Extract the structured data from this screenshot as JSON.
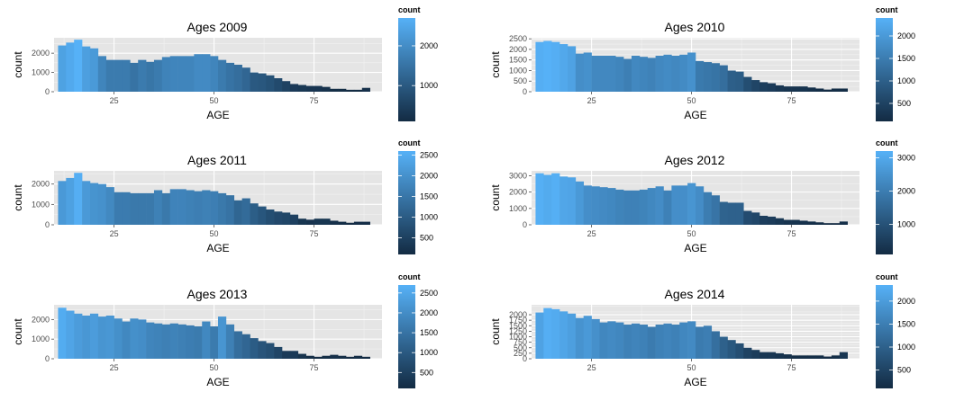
{
  "chart_data": [
    {
      "type": "bar",
      "title": "Ages 2009",
      "xlabel": "AGE",
      "ylabel": "count",
      "legend_title": "count",
      "x": [
        12,
        14,
        16,
        18,
        20,
        22,
        24,
        26,
        28,
        30,
        32,
        34,
        36,
        38,
        40,
        42,
        44,
        46,
        48,
        50,
        52,
        54,
        56,
        58,
        60,
        62,
        64,
        66,
        68,
        70,
        72,
        74,
        76,
        78,
        80,
        82,
        84,
        86,
        88
      ],
      "values": [
        2400,
        2550,
        2700,
        2350,
        2250,
        1850,
        1650,
        1650,
        1650,
        1500,
        1650,
        1550,
        1650,
        1800,
        1850,
        1850,
        1850,
        1950,
        1950,
        1850,
        1650,
        1500,
        1400,
        1250,
        1000,
        950,
        850,
        700,
        550,
        400,
        350,
        300,
        300,
        250,
        150,
        150,
        100,
        100,
        200
      ],
      "xlim": [
        10,
        92
      ],
      "ylim": [
        0,
        2800
      ],
      "xticks": [
        25,
        50,
        75
      ],
      "yticks": [
        0,
        1000,
        2000
      ],
      "ytick_labels": [
        "0",
        "1000",
        "2000"
      ],
      "legend_range": [
        100,
        2700
      ],
      "legend_ticks": [
        1000,
        2000
      ],
      "legend_tick_labels": [
        "1000",
        "2000"
      ],
      "color_low": "#132b43",
      "color_high": "#56b1f7"
    },
    {
      "type": "bar",
      "title": "Ages 2010",
      "xlabel": "AGE",
      "ylabel": "count",
      "legend_title": "count",
      "x": [
        12,
        14,
        16,
        18,
        20,
        22,
        24,
        26,
        28,
        30,
        32,
        34,
        36,
        38,
        40,
        42,
        44,
        46,
        48,
        50,
        52,
        54,
        56,
        58,
        60,
        62,
        64,
        66,
        68,
        70,
        72,
        74,
        76,
        78,
        80,
        82,
        84,
        86,
        88
      ],
      "values": [
        2350,
        2400,
        2350,
        2250,
        2150,
        1800,
        1850,
        1700,
        1700,
        1700,
        1650,
        1550,
        1700,
        1650,
        1600,
        1700,
        1750,
        1700,
        1750,
        1850,
        1450,
        1400,
        1350,
        1250,
        1000,
        950,
        700,
        550,
        450,
        400,
        300,
        250,
        250,
        250,
        200,
        150,
        100,
        150,
        150
      ],
      "xlim": [
        10,
        92
      ],
      "ylim": [
        0,
        2550
      ],
      "xticks": [
        25,
        50,
        75
      ],
      "yticks": [
        0,
        500,
        1000,
        1500,
        2000,
        2500
      ],
      "ytick_labels": [
        "0",
        "500",
        "1000",
        "1500",
        "2000",
        "2500"
      ],
      "legend_range": [
        100,
        2400
      ],
      "legend_ticks": [
        500,
        1000,
        1500,
        2000
      ],
      "legend_tick_labels": [
        "500",
        "1000",
        "1500",
        "2000"
      ],
      "color_low": "#132b43",
      "color_high": "#56b1f7"
    },
    {
      "type": "bar",
      "title": "Ages 2011",
      "xlabel": "AGE",
      "ylabel": "count",
      "legend_title": "count",
      "x": [
        12,
        14,
        16,
        18,
        20,
        22,
        24,
        26,
        28,
        30,
        32,
        34,
        36,
        38,
        40,
        42,
        44,
        46,
        48,
        50,
        52,
        54,
        56,
        58,
        60,
        62,
        64,
        66,
        68,
        70,
        72,
        74,
        76,
        78,
        80,
        82,
        84,
        86,
        88
      ],
      "values": [
        2150,
        2300,
        2550,
        2150,
        2050,
        2000,
        1850,
        1600,
        1600,
        1550,
        1550,
        1550,
        1700,
        1550,
        1750,
        1750,
        1700,
        1650,
        1700,
        1650,
        1550,
        1450,
        1200,
        1300,
        1050,
        900,
        750,
        650,
        600,
        500,
        300,
        250,
        300,
        300,
        200,
        150,
        100,
        150,
        150
      ],
      "xlim": [
        10,
        92
      ],
      "ylim": [
        0,
        2650
      ],
      "xticks": [
        25,
        50,
        75
      ],
      "yticks": [
        0,
        1000,
        2000
      ],
      "ytick_labels": [
        "0",
        "1000",
        "2000"
      ],
      "legend_range": [
        100,
        2600
      ],
      "legend_ticks": [
        500,
        1000,
        1500,
        2000,
        2500
      ],
      "legend_tick_labels": [
        "500",
        "1000",
        "1500",
        "2000",
        "2500"
      ],
      "color_low": "#132b43",
      "color_high": "#56b1f7"
    },
    {
      "type": "bar",
      "title": "Ages 2012",
      "xlabel": "AGE",
      "ylabel": "count",
      "legend_title": "count",
      "x": [
        12,
        14,
        16,
        18,
        20,
        22,
        24,
        26,
        28,
        30,
        32,
        34,
        36,
        38,
        40,
        42,
        44,
        46,
        48,
        50,
        52,
        54,
        56,
        58,
        60,
        62,
        64,
        66,
        68,
        70,
        72,
        74,
        76,
        78,
        80,
        82,
        84,
        86,
        88
      ],
      "values": [
        3150,
        3050,
        3150,
        2950,
        2900,
        2650,
        2400,
        2350,
        2300,
        2250,
        2150,
        2100,
        2100,
        2150,
        2250,
        2350,
        2100,
        2400,
        2400,
        2550,
        2350,
        2000,
        1800,
        1400,
        1350,
        1350,
        850,
        750,
        550,
        500,
        400,
        300,
        300,
        250,
        200,
        150,
        100,
        100,
        200
      ],
      "xlim": [
        10,
        92
      ],
      "ylim": [
        0,
        3300
      ],
      "xticks": [
        25,
        50,
        75
      ],
      "yticks": [
        0,
        1000,
        2000,
        3000
      ],
      "ytick_labels": [
        "0",
        "1000",
        "2000",
        "3000"
      ],
      "legend_range": [
        100,
        3200
      ],
      "legend_ticks": [
        1000,
        2000,
        3000
      ],
      "legend_tick_labels": [
        "1000",
        "2000",
        "3000"
      ],
      "color_low": "#132b43",
      "color_high": "#56b1f7"
    },
    {
      "type": "bar",
      "title": "Ages 2013",
      "xlabel": "AGE",
      "ylabel": "count",
      "legend_title": "count",
      "x": [
        12,
        14,
        16,
        18,
        20,
        22,
        24,
        26,
        28,
        30,
        32,
        34,
        36,
        38,
        40,
        42,
        44,
        46,
        48,
        50,
        52,
        54,
        56,
        58,
        60,
        62,
        64,
        66,
        68,
        70,
        72,
        74,
        76,
        78,
        80,
        82,
        84,
        86,
        88
      ],
      "values": [
        2600,
        2450,
        2300,
        2200,
        2300,
        2150,
        2200,
        2050,
        1900,
        2050,
        2000,
        1850,
        1800,
        1750,
        1800,
        1750,
        1700,
        1650,
        1900,
        1650,
        2150,
        1750,
        1400,
        1250,
        1050,
        900,
        800,
        600,
        400,
        400,
        250,
        150,
        100,
        150,
        200,
        150,
        100,
        150,
        100
      ],
      "xlim": [
        10,
        92
      ],
      "ylim": [
        0,
        2750
      ],
      "xticks": [
        25,
        50,
        75
      ],
      "yticks": [
        0,
        1000,
        2000
      ],
      "ytick_labels": [
        "0",
        "1000",
        "2000"
      ],
      "legend_range": [
        100,
        2700
      ],
      "legend_ticks": [
        500,
        1000,
        1500,
        2000,
        2500
      ],
      "legend_tick_labels": [
        "500",
        "1000",
        "1500",
        "2000",
        "2500"
      ],
      "color_low": "#132b43",
      "color_high": "#56b1f7"
    },
    {
      "type": "bar",
      "title": "Ages 2014",
      "xlabel": "AGE",
      "ylabel": "count",
      "legend_title": "count",
      "x": [
        12,
        14,
        16,
        18,
        20,
        22,
        24,
        26,
        28,
        30,
        32,
        34,
        36,
        38,
        40,
        42,
        44,
        46,
        48,
        50,
        52,
        54,
        56,
        58,
        60,
        62,
        64,
        66,
        68,
        70,
        72,
        74,
        76,
        78,
        80,
        82,
        84,
        86,
        88
      ],
      "values": [
        2100,
        2300,
        2250,
        2150,
        2050,
        1850,
        1950,
        1800,
        1650,
        1700,
        1650,
        1550,
        1600,
        1550,
        1450,
        1550,
        1600,
        1550,
        1650,
        1700,
        1450,
        1500,
        1250,
        1000,
        850,
        700,
        500,
        400,
        300,
        300,
        250,
        200,
        150,
        150,
        150,
        150,
        100,
        150,
        300
      ],
      "xlim": [
        10,
        92
      ],
      "ylim": [
        0,
        2450
      ],
      "xticks": [
        25,
        50,
        75
      ],
      "yticks": [
        0,
        250,
        500,
        750,
        1000,
        1250,
        1500,
        1750,
        2000
      ],
      "ytick_labels": [
        "0",
        "250",
        "500",
        "750",
        "1000",
        "1250",
        "1500",
        "1750",
        "2000"
      ],
      "legend_range": [
        100,
        2350
      ],
      "legend_ticks": [
        500,
        1000,
        1500,
        2000
      ],
      "legend_tick_labels": [
        "500",
        "1000",
        "1500",
        "2000"
      ],
      "color_low": "#132b43",
      "color_high": "#56b1f7"
    }
  ]
}
